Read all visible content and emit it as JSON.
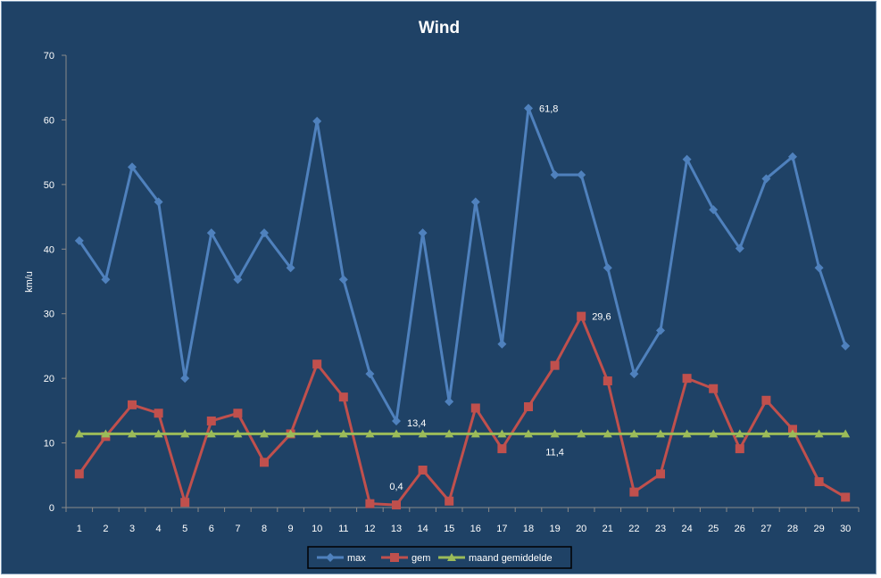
{
  "chart_data": {
    "type": "line",
    "title": "Wind",
    "xlabel": "",
    "ylabel": "km/u",
    "ylim": [
      0,
      70
    ],
    "yticks": [
      0,
      10,
      20,
      30,
      40,
      50,
      60,
      70
    ],
    "categories": [
      "1",
      "2",
      "3",
      "4",
      "5",
      "6",
      "7",
      "8",
      "9",
      "10",
      "11",
      "12",
      "13",
      "14",
      "15",
      "16",
      "17",
      "18",
      "19",
      "20",
      "21",
      "22",
      "23",
      "24",
      "25",
      "26",
      "27",
      "28",
      "29",
      "30"
    ],
    "grid": false,
    "legend_position": "bottom",
    "series": [
      {
        "name": "max",
        "color": "#4f81bd",
        "marker": "diamond",
        "values": [
          41.3,
          35.3,
          52.7,
          47.3,
          20.0,
          42.5,
          35.3,
          42.5,
          37.1,
          59.8,
          35.3,
          20.7,
          13.4,
          42.5,
          16.4,
          47.3,
          25.3,
          61.8,
          51.5,
          51.5,
          37.1,
          20.7,
          27.4,
          53.9,
          46.1,
          40.1,
          50.9,
          54.3,
          37.1,
          25.0
        ]
      },
      {
        "name": "gem",
        "color": "#c0504d",
        "marker": "square",
        "values": [
          5.2,
          11.0,
          15.9,
          14.6,
          0.8,
          13.4,
          14.6,
          7.0,
          11.4,
          22.2,
          17.1,
          0.6,
          0.4,
          5.8,
          1.0,
          15.4,
          9.1,
          15.6,
          22.0,
          29.6,
          19.6,
          2.4,
          5.2,
          20.0,
          18.4,
          9.1,
          16.6,
          12.1,
          4.0,
          1.6
        ]
      },
      {
        "name": "maand gemiddelde",
        "color": "#9bbb59",
        "marker": "triangle",
        "values": [
          11.4,
          11.4,
          11.4,
          11.4,
          11.4,
          11.4,
          11.4,
          11.4,
          11.4,
          11.4,
          11.4,
          11.4,
          11.4,
          11.4,
          11.4,
          11.4,
          11.4,
          11.4,
          11.4,
          11.4,
          11.4,
          11.4,
          11.4,
          11.4,
          11.4,
          11.4,
          11.4,
          11.4,
          11.4,
          11.4
        ]
      }
    ],
    "annotations": [
      {
        "series": 0,
        "index": 17,
        "text": "61,8"
      },
      {
        "series": 0,
        "index": 12,
        "text": "13,4"
      },
      {
        "series": 1,
        "index": 19,
        "text": "29,6"
      },
      {
        "series": 1,
        "index": 12,
        "text": "0,4"
      },
      {
        "series": 2,
        "index": 18,
        "text": "11,4"
      }
    ]
  }
}
